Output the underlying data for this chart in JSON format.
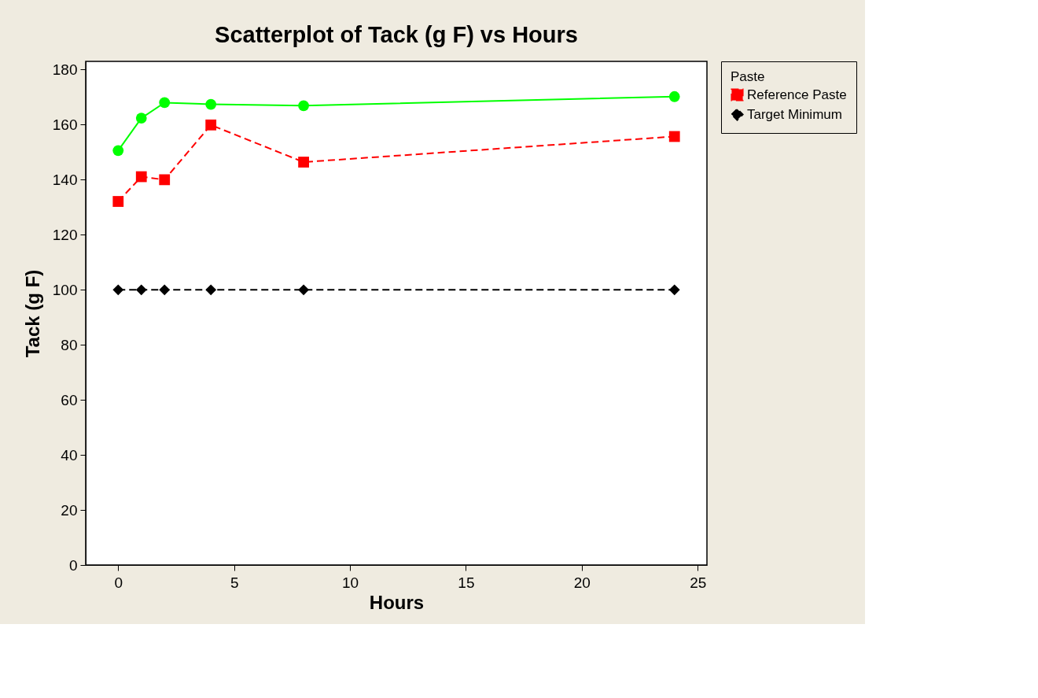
{
  "chart_data": {
    "type": "line",
    "title": "Scatterplot of Tack (g F) vs Hours",
    "xlabel": "Hours",
    "ylabel": "Tack (g F)",
    "legend_title": "Paste",
    "legend": "top right",
    "grid": false,
    "xlim": [
      -1.4,
      25.4
    ],
    "xticks": [
      0,
      5,
      10,
      15,
      20,
      25
    ],
    "ylim": [
      0,
      183
    ],
    "yticks": [
      0,
      20,
      40,
      60,
      80,
      100,
      120,
      140,
      160,
      180
    ],
    "series": [
      {
        "color": "#00ff00",
        "marker": "circle",
        "line_style": "solid",
        "x": [
          0,
          1,
          2,
          4,
          8,
          24
        ],
        "values": [
          150.6,
          162.4,
          168,
          167.4,
          166.9,
          170.2
        ]
      },
      {
        "name": "Reference Paste",
        "color": "#ff0000",
        "marker": "square",
        "line_style": "dashed",
        "x": [
          0,
          1,
          2,
          4,
          8,
          24
        ],
        "values": [
          132.1,
          141.1,
          140,
          159.9,
          146.4,
          155.7
        ]
      },
      {
        "name": "Target Minimum",
        "color": "#000000",
        "marker": "diamond",
        "line_style": "dashed",
        "x": [
          0,
          1,
          2,
          4,
          8,
          24
        ],
        "values": [
          100,
          100,
          100,
          100,
          100,
          100
        ]
      }
    ]
  }
}
